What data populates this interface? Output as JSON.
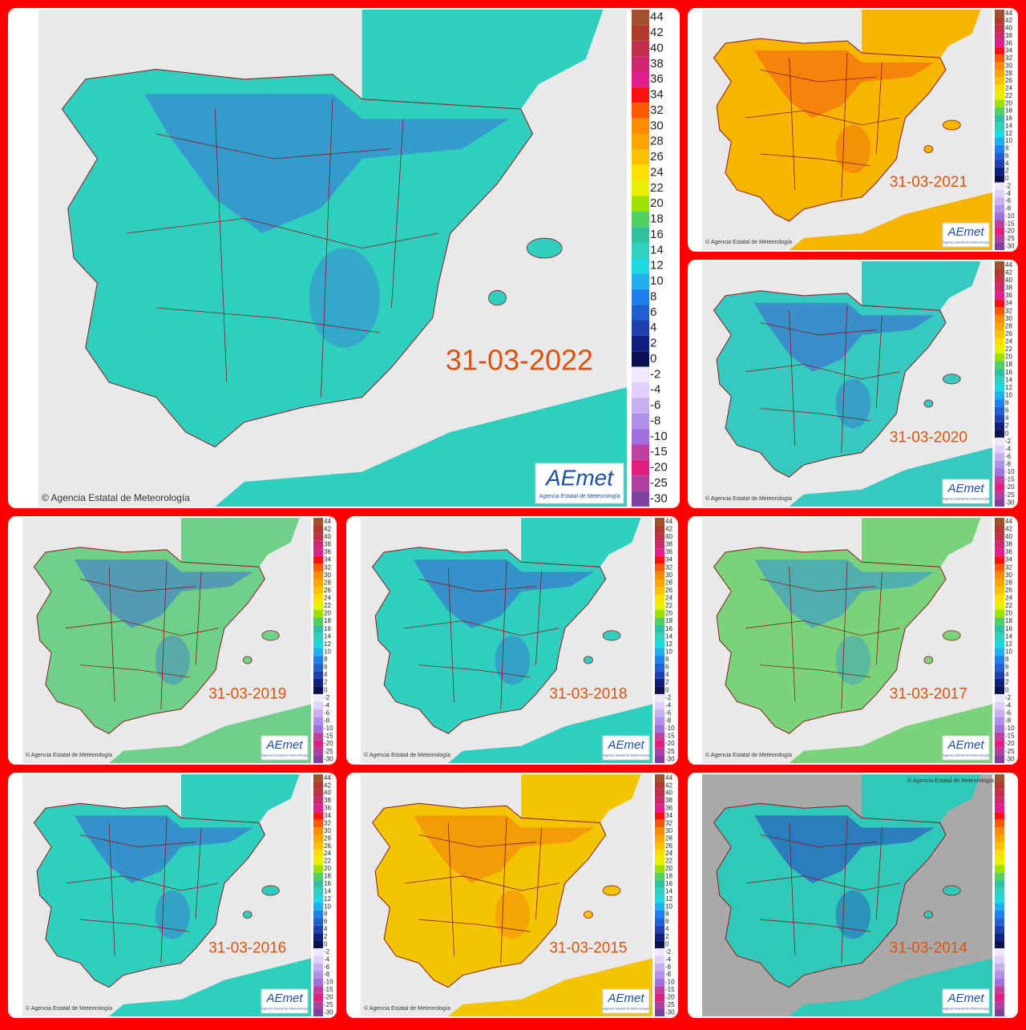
{
  "credit": "© Agencia Estatal de Meteorología",
  "logo": "AEmet",
  "logo_subtitle": "Agencia Estatal de Meteorología",
  "legend": {
    "labels": [
      44,
      42,
      40,
      38,
      36,
      34,
      32,
      30,
      28,
      26,
      24,
      22,
      20,
      18,
      16,
      14,
      12,
      10,
      8,
      6,
      4,
      2,
      0,
      -2,
      -4,
      -6,
      -8,
      -10,
      -15,
      -20,
      -25,
      -30
    ],
    "colors": [
      "#a0522d",
      "#b03a2e",
      "#c0304a",
      "#d02870",
      "#e0208f",
      "#ff1010",
      "#ff5a00",
      "#ff8c00",
      "#ffa500",
      "#ffc000",
      "#ffe000",
      "#e6f000",
      "#a0e000",
      "#50d060",
      "#30c0a0",
      "#30d0c0",
      "#20d8e0",
      "#20b0f0",
      "#2080f0",
      "#2060d0",
      "#2040b0",
      "#102080",
      "#0a1050",
      "#f0e8ff",
      "#e0d0ff",
      "#c8b0f0",
      "#b090e8",
      "#a070e0",
      "#c040a0",
      "#e02080",
      "#b040a0",
      "#8040a0"
    ]
  },
  "panels": [
    {
      "date": "31-03-2022",
      "fill": "#2fcfc0",
      "accent": "#3a6fd6",
      "background": "#e9e9e9",
      "legend_labels_shown": true
    },
    {
      "date": "31-03-2021",
      "fill": "#f7b500",
      "accent": "#f05a10",
      "background": "#e9e9e9",
      "legend_labels_shown": true
    },
    {
      "date": "31-03-2020",
      "fill": "#35c9c0",
      "accent": "#3b5fd0",
      "background": "#e9e9e9",
      "legend_labels_shown": true
    },
    {
      "date": "31-03-2019",
      "fill": "#6fd08a",
      "accent": "#3a6fd6",
      "background": "#e9e9e9",
      "legend_labels_shown": true
    },
    {
      "date": "31-03-2018",
      "fill": "#2fcfc0",
      "accent": "#3a5fd0",
      "background": "#e9e9e9",
      "legend_labels_shown": true
    },
    {
      "date": "31-03-2017",
      "fill": "#7ad27a",
      "accent": "#2f90d8",
      "background": "#e9e9e9",
      "legend_labels_shown": true
    },
    {
      "date": "31-03-2016",
      "fill": "#2fcfc0",
      "accent": "#3a5fd0",
      "background": "#e9e9e9",
      "legend_labels_shown": true
    },
    {
      "date": "31-03-2015",
      "fill": "#f5c400",
      "accent": "#f07a10",
      "background": "#e9e9e9",
      "legend_labels_shown": true
    },
    {
      "date": "31-03-2014",
      "fill": "#30c8b8",
      "accent": "#2a40c0",
      "background": "#a9a9a9",
      "legend_labels_shown": false
    }
  ]
}
